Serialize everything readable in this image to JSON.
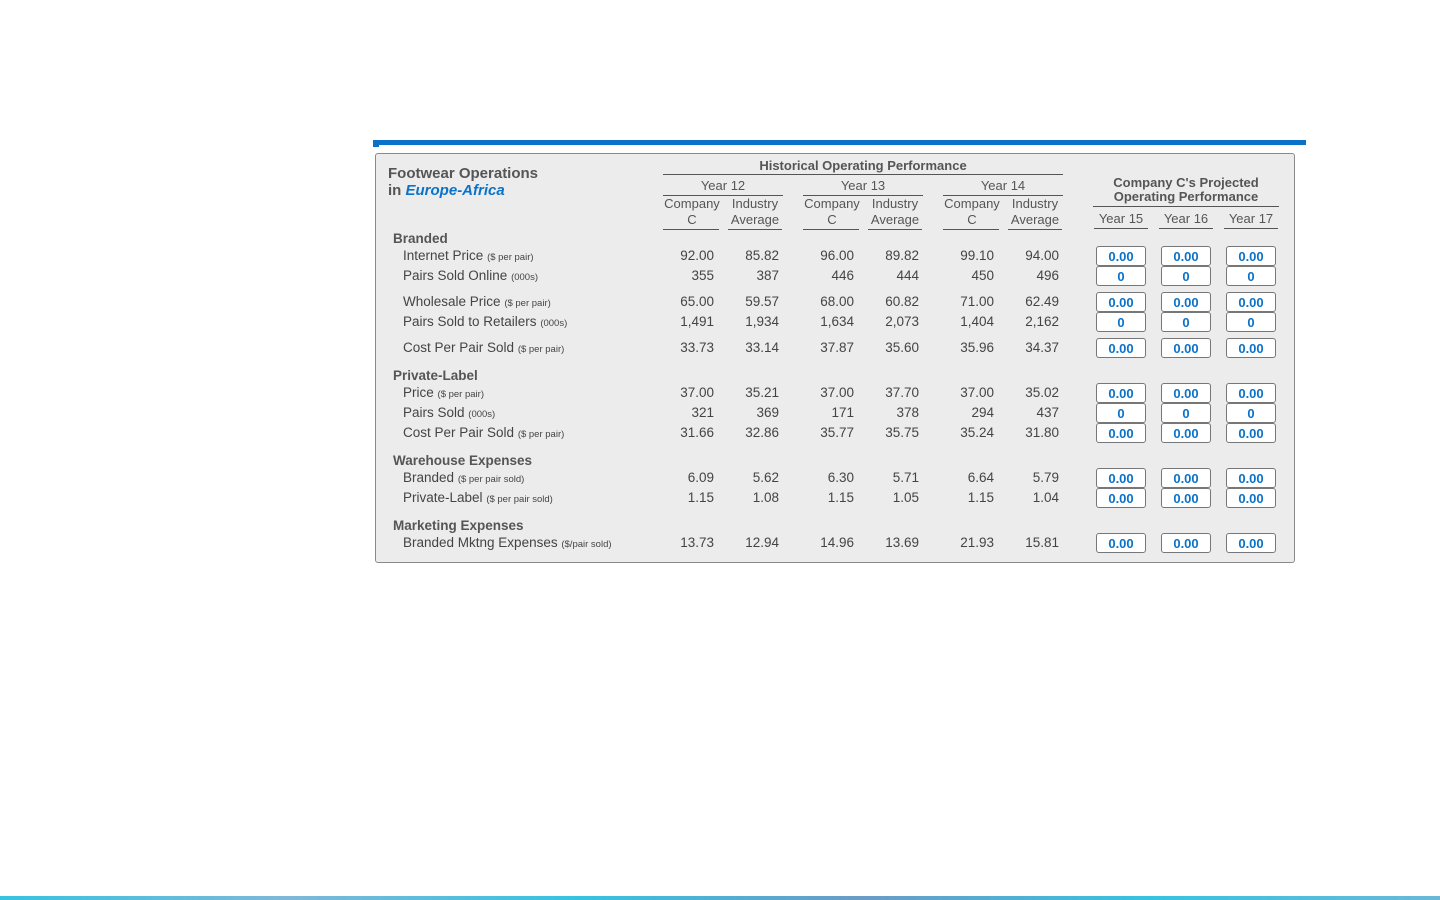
{
  "title": {
    "line1": "Footwear Operations",
    "line2_prefix": "in",
    "region": "Europe-Africa"
  },
  "historical": {
    "title": "Historical Operating Performance",
    "years": [
      "Year 12",
      "Year 13",
      "Year 14"
    ],
    "col_company": [
      "Company",
      "C"
    ],
    "col_industry": [
      "Industry",
      "Average"
    ]
  },
  "projected": {
    "title_line1": "Company C's Projected",
    "title_line2": "Operating Performance",
    "years": [
      "Year 15",
      "Year 16",
      "Year 17"
    ]
  },
  "sections": [
    {
      "name": "Branded",
      "rows": [
        {
          "label": "Internet Price",
          "unit": "($ per pair)",
          "values": [
            "92.00",
            "85.82",
            "96.00",
            "89.82",
            "99.10",
            "94.00"
          ],
          "inputs": [
            "0.00",
            "0.00",
            "0.00"
          ]
        },
        {
          "label": "Pairs Sold Online",
          "unit": "(000s)",
          "values": [
            "355",
            "387",
            "446",
            "444",
            "450",
            "496"
          ],
          "inputs": [
            "0",
            "0",
            "0"
          ]
        },
        {
          "label": "Wholesale Price",
          "unit": "($ per pair)",
          "values": [
            "65.00",
            "59.57",
            "68.00",
            "60.82",
            "71.00",
            "62.49"
          ],
          "inputs": [
            "0.00",
            "0.00",
            "0.00"
          ]
        },
        {
          "label": "Pairs Sold to Retailers",
          "unit": "(000s)",
          "values": [
            "1,491",
            "1,934",
            "1,634",
            "2,073",
            "1,404",
            "2,162"
          ],
          "inputs": [
            "0",
            "0",
            "0"
          ]
        },
        {
          "label": "Cost Per Pair Sold",
          "unit": "($ per pair)",
          "values": [
            "33.73",
            "33.14",
            "37.87",
            "35.60",
            "35.96",
            "34.37"
          ],
          "inputs": [
            "0.00",
            "0.00",
            "0.00"
          ]
        }
      ]
    },
    {
      "name": "Private-Label",
      "rows": [
        {
          "label": "Price",
          "unit": "($ per pair)",
          "values": [
            "37.00",
            "35.21",
            "37.00",
            "37.70",
            "37.00",
            "35.02"
          ],
          "inputs": [
            "0.00",
            "0.00",
            "0.00"
          ]
        },
        {
          "label": "Pairs Sold",
          "unit": "(000s)",
          "values": [
            "321",
            "369",
            "171",
            "378",
            "294",
            "437"
          ],
          "inputs": [
            "0",
            "0",
            "0"
          ]
        },
        {
          "label": "Cost Per Pair Sold",
          "unit": "($ per pair)",
          "values": [
            "31.66",
            "32.86",
            "35.77",
            "35.75",
            "35.24",
            "31.80"
          ],
          "inputs": [
            "0.00",
            "0.00",
            "0.00"
          ]
        }
      ]
    },
    {
      "name": "Warehouse Expenses",
      "rows": [
        {
          "label": "Branded",
          "unit": "($ per pair sold)",
          "values": [
            "6.09",
            "5.62",
            "6.30",
            "5.71",
            "6.64",
            "5.79"
          ],
          "inputs": [
            "0.00",
            "0.00",
            "0.00"
          ]
        },
        {
          "label": "Private-Label",
          "unit": "($ per pair sold)",
          "values": [
            "1.15",
            "1.08",
            "1.15",
            "1.05",
            "1.15",
            "1.04"
          ],
          "inputs": [
            "0.00",
            "0.00",
            "0.00"
          ]
        }
      ]
    },
    {
      "name": "Marketing Expenses",
      "rows": [
        {
          "label": "Branded Mktng Expenses",
          "unit": "($/pair sold)",
          "values": [
            "13.73",
            "12.94",
            "14.96",
            "13.69",
            "21.93",
            "15.81"
          ],
          "inputs": [
            "0.00",
            "0.00",
            "0.00"
          ]
        }
      ]
    }
  ],
  "colors": {
    "accent": "#0a72c8",
    "panel_bg": "#ececec",
    "text": "#444444"
  }
}
